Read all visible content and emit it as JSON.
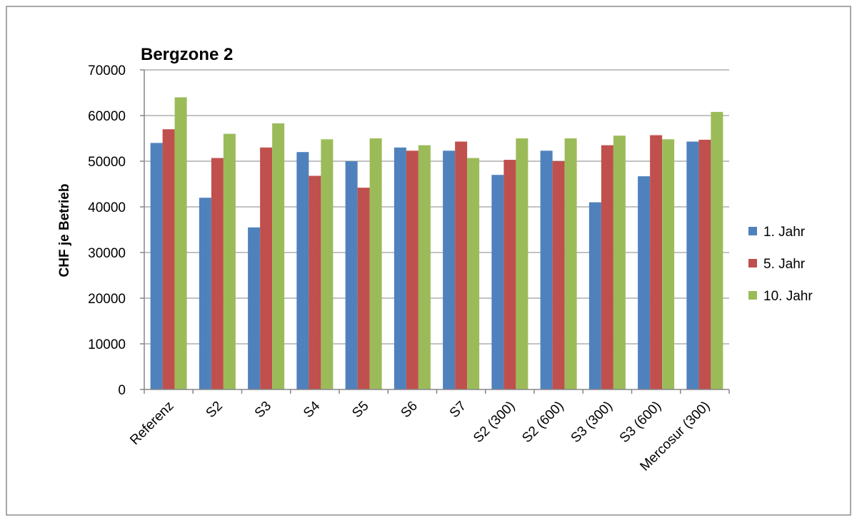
{
  "chart_data": {
    "type": "bar",
    "title": "Bergzone 2",
    "ylabel": "CHF je Betrieb",
    "xlabel": "",
    "ylim": [
      0,
      70000
    ],
    "yticks": [
      0,
      10000,
      20000,
      30000,
      40000,
      50000,
      60000,
      70000
    ],
    "grid": true,
    "legend_position": "right",
    "categories": [
      "Referenz",
      "S2",
      "S3",
      "S4",
      "S5",
      "S6",
      "S7",
      "S2 (300)",
      "S2 (600)",
      "S3 (300)",
      "S3 (600)",
      "Mercosur (300)"
    ],
    "series": [
      {
        "name": "1. Jahr",
        "color": "#4F81BD",
        "values": [
          54000,
          42000,
          35500,
          52000,
          50000,
          53000,
          52300,
          47000,
          52300,
          41000,
          46700,
          54300
        ]
      },
      {
        "name": "5. Jahr",
        "color": "#C0504D",
        "values": [
          57000,
          50700,
          53000,
          46800,
          44200,
          52300,
          54300,
          50300,
          50000,
          53500,
          55700,
          54700
        ]
      },
      {
        "name": "10. Jahr",
        "color": "#9BBB59",
        "values": [
          64000,
          56000,
          58300,
          54800,
          55000,
          53500,
          50700,
          55000,
          55000,
          55600,
          54800,
          60800
        ]
      }
    ]
  }
}
